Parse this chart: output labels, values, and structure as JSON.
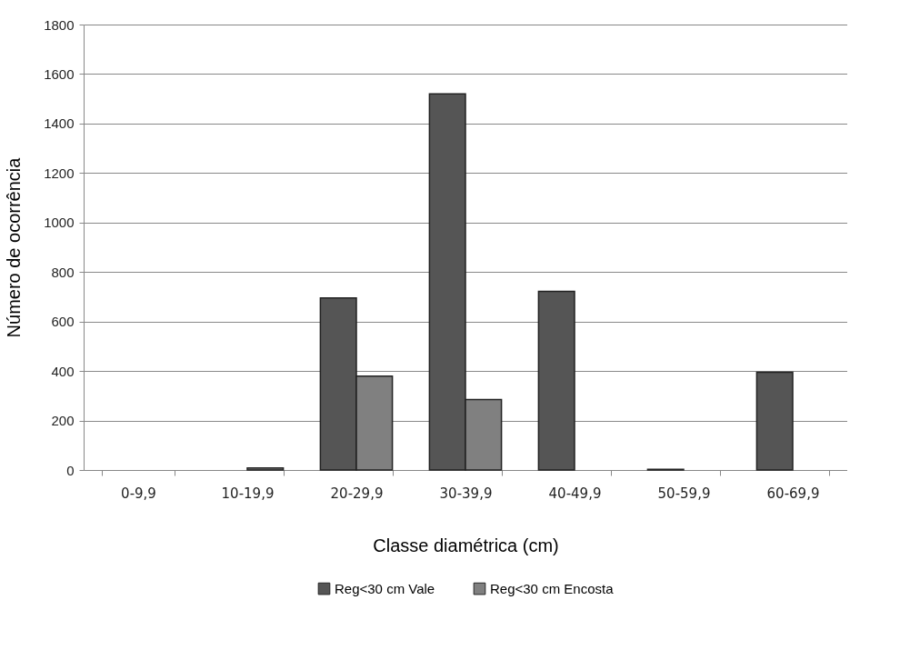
{
  "chart_data": {
    "type": "bar",
    "xlabel": "Classe diamétrica (cm)",
    "ylabel": "Número de ocorrência",
    "categories": [
      "0-9,9",
      "10-19,9",
      "20-29,9",
      "30-39,9",
      "40-49,9",
      "50-59,9",
      "60-69,9"
    ],
    "series": [
      {
        "name": "Reg<30 cm Vale",
        "color": "#555555",
        "values": [
          null,
          null,
          695,
          1520,
          722,
          3,
          395
        ]
      },
      {
        "name": "Reg<30 cm Encosta",
        "color": "#808080",
        "values": [
          null,
          8,
          379,
          285,
          null,
          null,
          null
        ]
      }
    ],
    "ylim": [
      0,
      1800
    ],
    "yticks": [
      0,
      200,
      400,
      600,
      800,
      1000,
      1200,
      1400,
      1600,
      1800
    ],
    "grid": "y",
    "legend": "bottom"
  }
}
